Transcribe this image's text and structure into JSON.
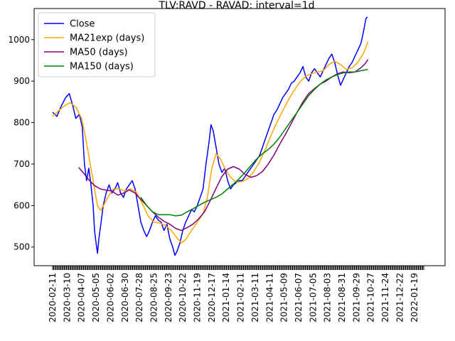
{
  "chart_data": {
    "type": "line",
    "title": "TLV:RAVD - RAVAD: interval=1d",
    "xlabel": "",
    "ylabel": "",
    "ylim": [
      455,
      1075
    ],
    "yticks": [
      500,
      600,
      700,
      800,
      900,
      1000
    ],
    "x_tick_labels": [
      "2020-02-11",
      "2020-03-10",
      "2020-04-07",
      "2020-05-05",
      "2020-06-02",
      "2020-06-30",
      "2020-07-28",
      "2020-08-25",
      "2020-09-23",
      "2020-10-22",
      "2020-11-19",
      "2020-12-17",
      "2021-01-14",
      "2021-02-11",
      "2021-03-11",
      "2021-04-11",
      "2021-05-09",
      "2021-06-07",
      "2021-07-05",
      "2021-08-03",
      "2021-08-31",
      "2021-09-29",
      "2021-10-27",
      "2021-11-24",
      "2021-12-22",
      "2022-01-19"
    ],
    "legend": {
      "placement": "upper-left"
    },
    "grid": false,
    "series": [
      {
        "name": "Close",
        "color": "#0000ff",
        "points": [
          [
            0,
            825
          ],
          [
            0.3,
            815
          ],
          [
            0.6,
            840
          ],
          [
            0.9,
            860
          ],
          [
            1.15,
            870
          ],
          [
            1.4,
            840
          ],
          [
            1.6,
            810
          ],
          [
            1.85,
            820
          ],
          [
            2.05,
            790
          ],
          [
            2.2,
            700
          ],
          [
            2.35,
            660
          ],
          [
            2.5,
            690
          ],
          [
            2.65,
            650
          ],
          [
            2.8,
            600
          ],
          [
            2.9,
            540
          ],
          [
            3.0,
            510
          ],
          [
            3.1,
            485
          ],
          [
            3.2,
            520
          ],
          [
            3.35,
            560
          ],
          [
            3.5,
            600
          ],
          [
            3.7,
            630
          ],
          [
            3.9,
            650
          ],
          [
            4.1,
            630
          ],
          [
            4.3,
            640
          ],
          [
            4.5,
            655
          ],
          [
            4.7,
            630
          ],
          [
            4.9,
            620
          ],
          [
            5.1,
            640
          ],
          [
            5.3,
            650
          ],
          [
            5.5,
            660
          ],
          [
            5.7,
            640
          ],
          [
            5.9,
            600
          ],
          [
            6.1,
            560
          ],
          [
            6.3,
            540
          ],
          [
            6.5,
            525
          ],
          [
            6.7,
            540
          ],
          [
            6.9,
            560
          ],
          [
            7.1,
            575
          ],
          [
            7.3,
            565
          ],
          [
            7.5,
            560
          ],
          [
            7.7,
            540
          ],
          [
            7.9,
            555
          ],
          [
            8.1,
            520
          ],
          [
            8.3,
            500
          ],
          [
            8.45,
            480
          ],
          [
            8.6,
            490
          ],
          [
            8.8,
            510
          ],
          [
            9.0,
            540
          ],
          [
            9.2,
            560
          ],
          [
            9.4,
            575
          ],
          [
            9.6,
            590
          ],
          [
            9.8,
            585
          ],
          [
            10.0,
            600
          ],
          [
            10.2,
            620
          ],
          [
            10.4,
            640
          ],
          [
            10.6,
            700
          ],
          [
            10.8,
            750
          ],
          [
            10.95,
            795
          ],
          [
            11.1,
            780
          ],
          [
            11.3,
            740
          ],
          [
            11.5,
            700
          ],
          [
            11.7,
            680
          ],
          [
            11.9,
            690
          ],
          [
            12.1,
            660
          ],
          [
            12.3,
            640
          ],
          [
            12.5,
            650
          ],
          [
            12.7,
            655
          ],
          [
            12.9,
            660
          ],
          [
            13.1,
            660
          ],
          [
            13.3,
            670
          ],
          [
            13.5,
            680
          ],
          [
            13.7,
            690
          ],
          [
            13.9,
            700
          ],
          [
            14.1,
            710
          ],
          [
            14.3,
            720
          ],
          [
            14.5,
            740
          ],
          [
            14.7,
            760
          ],
          [
            14.9,
            780
          ],
          [
            15.1,
            800
          ],
          [
            15.3,
            820
          ],
          [
            15.5,
            830
          ],
          [
            15.7,
            845
          ],
          [
            15.9,
            860
          ],
          [
            16.1,
            870
          ],
          [
            16.3,
            880
          ],
          [
            16.5,
            895
          ],
          [
            16.7,
            900
          ],
          [
            16.9,
            910
          ],
          [
            17.1,
            920
          ],
          [
            17.3,
            935
          ],
          [
            17.5,
            910
          ],
          [
            17.7,
            900
          ],
          [
            17.9,
            920
          ],
          [
            18.1,
            930
          ],
          [
            18.3,
            920
          ],
          [
            18.5,
            910
          ],
          [
            18.7,
            925
          ],
          [
            18.9,
            940
          ],
          [
            19.1,
            955
          ],
          [
            19.3,
            965
          ],
          [
            19.5,
            945
          ],
          [
            19.7,
            915
          ],
          [
            19.9,
            890
          ],
          [
            20.1,
            905
          ],
          [
            20.3,
            920
          ],
          [
            20.5,
            935
          ],
          [
            20.7,
            945
          ],
          [
            20.9,
            960
          ],
          [
            21.1,
            975
          ],
          [
            21.3,
            990
          ],
          [
            21.4,
            1005
          ],
          [
            21.55,
            1030
          ],
          [
            21.65,
            1050
          ],
          [
            21.75,
            1055
          ]
        ]
      },
      {
        "name": "MA21exp (days)",
        "color": "#ffa500",
        "points": [
          [
            0,
            815
          ],
          [
            0.4,
            828
          ],
          [
            0.8,
            840
          ],
          [
            1.2,
            848
          ],
          [
            1.6,
            838
          ],
          [
            2.0,
            810
          ],
          [
            2.3,
            760
          ],
          [
            2.6,
            700
          ],
          [
            2.9,
            640
          ],
          [
            3.1,
            600
          ],
          [
            3.3,
            588
          ],
          [
            3.6,
            605
          ],
          [
            3.9,
            625
          ],
          [
            4.2,
            640
          ],
          [
            4.6,
            640
          ],
          [
            5.0,
            635
          ],
          [
            5.4,
            640
          ],
          [
            5.8,
            632
          ],
          [
            6.2,
            605
          ],
          [
            6.6,
            575
          ],
          [
            7.0,
            560
          ],
          [
            7.4,
            558
          ],
          [
            7.8,
            552
          ],
          [
            8.2,
            540
          ],
          [
            8.6,
            522
          ],
          [
            8.9,
            510
          ],
          [
            9.2,
            518
          ],
          [
            9.6,
            540
          ],
          [
            10.0,
            560
          ],
          [
            10.4,
            580
          ],
          [
            10.7,
            620
          ],
          [
            11.0,
            690
          ],
          [
            11.3,
            725
          ],
          [
            11.6,
            712
          ],
          [
            11.9,
            690
          ],
          [
            12.3,
            668
          ],
          [
            12.7,
            656
          ],
          [
            13.1,
            658
          ],
          [
            13.5,
            665
          ],
          [
            13.9,
            682
          ],
          [
            14.3,
            705
          ],
          [
            14.7,
            735
          ],
          [
            15.1,
            770
          ],
          [
            15.5,
            800
          ],
          [
            15.9,
            828
          ],
          [
            16.3,
            855
          ],
          [
            16.7,
            878
          ],
          [
            17.1,
            898
          ],
          [
            17.5,
            912
          ],
          [
            17.9,
            918
          ],
          [
            18.3,
            922
          ],
          [
            18.7,
            925
          ],
          [
            19.1,
            940
          ],
          [
            19.5,
            948
          ],
          [
            19.9,
            940
          ],
          [
            20.3,
            928
          ],
          [
            20.7,
            932
          ],
          [
            21.1,
            945
          ],
          [
            21.5,
            968
          ],
          [
            21.8,
            995
          ]
        ]
      },
      {
        "name": "MA50 (days)",
        "color": "#800080",
        "points": [
          [
            1.8,
            692
          ],
          [
            2.1,
            680
          ],
          [
            2.5,
            662
          ],
          [
            2.9,
            648
          ],
          [
            3.3,
            640
          ],
          [
            3.7,
            637
          ],
          [
            4.1,
            635
          ],
          [
            4.5,
            625
          ],
          [
            4.9,
            630
          ],
          [
            5.3,
            638
          ],
          [
            5.7,
            630
          ],
          [
            6.1,
            615
          ],
          [
            6.5,
            600
          ],
          [
            6.9,
            585
          ],
          [
            7.3,
            572
          ],
          [
            7.7,
            562
          ],
          [
            8.1,
            555
          ],
          [
            8.5,
            545
          ],
          [
            8.9,
            540
          ],
          [
            9.3,
            547
          ],
          [
            9.7,
            555
          ],
          [
            10.1,
            568
          ],
          [
            10.5,
            585
          ],
          [
            10.9,
            612
          ],
          [
            11.3,
            642
          ],
          [
            11.7,
            670
          ],
          [
            12.1,
            688
          ],
          [
            12.5,
            694
          ],
          [
            12.9,
            688
          ],
          [
            13.3,
            675
          ],
          [
            13.7,
            668
          ],
          [
            14.1,
            672
          ],
          [
            14.5,
            682
          ],
          [
            14.9,
            700
          ],
          [
            15.3,
            722
          ],
          [
            15.7,
            748
          ],
          [
            16.1,
            772
          ],
          [
            16.5,
            798
          ],
          [
            16.9,
            825
          ],
          [
            17.3,
            850
          ],
          [
            17.7,
            870
          ],
          [
            18.1,
            882
          ],
          [
            18.5,
            893
          ],
          [
            18.9,
            900
          ],
          [
            19.3,
            910
          ],
          [
            19.7,
            918
          ],
          [
            20.1,
            922
          ],
          [
            20.5,
            920
          ],
          [
            20.9,
            922
          ],
          [
            21.3,
            932
          ],
          [
            21.6,
            942
          ],
          [
            21.8,
            952
          ]
        ]
      },
      {
        "name": "MA150 (days)",
        "color": "#008000",
        "points": [
          [
            6.1,
            620
          ],
          [
            6.5,
            600
          ],
          [
            6.9,
            585
          ],
          [
            7.3,
            578
          ],
          [
            7.7,
            578
          ],
          [
            8.1,
            578
          ],
          [
            8.5,
            575
          ],
          [
            8.9,
            577
          ],
          [
            9.3,
            585
          ],
          [
            9.7,
            592
          ],
          [
            10.1,
            600
          ],
          [
            10.5,
            608
          ],
          [
            10.9,
            614
          ],
          [
            11.3,
            620
          ],
          [
            11.7,
            628
          ],
          [
            12.1,
            640
          ],
          [
            12.5,
            652
          ],
          [
            12.9,
            665
          ],
          [
            13.3,
            680
          ],
          [
            13.7,
            696
          ],
          [
            14.1,
            712
          ],
          [
            14.5,
            725
          ],
          [
            14.9,
            735
          ],
          [
            15.3,
            748
          ],
          [
            15.7,
            765
          ],
          [
            16.1,
            785
          ],
          [
            16.5,
            805
          ],
          [
            16.9,
            825
          ],
          [
            17.3,
            845
          ],
          [
            17.7,
            865
          ],
          [
            18.1,
            880
          ],
          [
            18.5,
            893
          ],
          [
            18.9,
            903
          ],
          [
            19.3,
            910
          ],
          [
            19.7,
            916
          ],
          [
            20.1,
            920
          ],
          [
            20.5,
            922
          ],
          [
            20.9,
            922
          ],
          [
            21.3,
            925
          ],
          [
            21.6,
            927
          ],
          [
            21.8,
            928
          ]
        ]
      }
    ]
  }
}
